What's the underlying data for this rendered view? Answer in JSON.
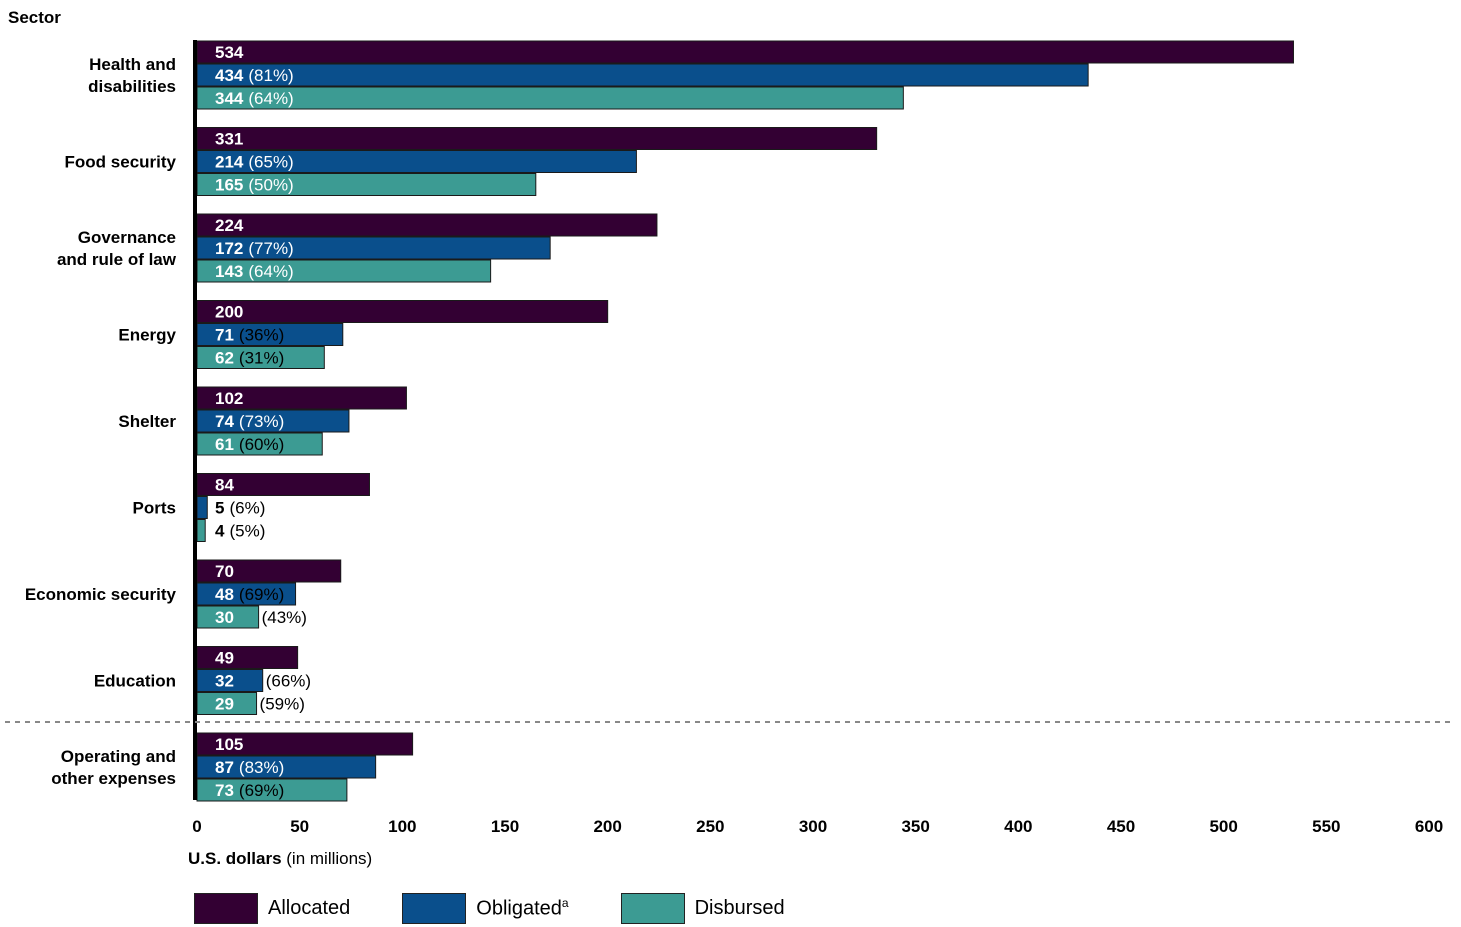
{
  "chart_data": {
    "type": "bar",
    "orientation": "horizontal",
    "ylabel": "Sector",
    "xlabel_bold": "U.S. dollars",
    "xlabel_rest": "(in millions)",
    "xlim": [
      0,
      600
    ],
    "xticks": [
      "0",
      "50",
      "100",
      "150",
      "200",
      "250",
      "300",
      "350",
      "400",
      "450",
      "500",
      "550",
      "600"
    ],
    "categories": [
      [
        "Health and",
        "disabilities"
      ],
      [
        "Food security"
      ],
      [
        "Governance",
        "and rule of law"
      ],
      [
        "Energy"
      ],
      [
        "Shelter"
      ],
      [
        "Ports"
      ],
      [
        "Economic security"
      ],
      [
        "Education"
      ],
      [
        "Operating and",
        "other expenses"
      ]
    ],
    "series": [
      {
        "name": "Allocated",
        "color": "#330033",
        "values": [
          534,
          331,
          224,
          200,
          102,
          84,
          70,
          49,
          105
        ],
        "pct": [
          null,
          null,
          null,
          null,
          null,
          null,
          null,
          null,
          null
        ]
      },
      {
        "name": "Obligated",
        "color": "#0a4f8c",
        "values": [
          434,
          214,
          172,
          71,
          74,
          5,
          48,
          32,
          87
        ],
        "pct": [
          "(81%)",
          "(65%)",
          "(77%)",
          "(36%)",
          "(73%)",
          "(6%)",
          "(69%)",
          "(66%)",
          "(83%)"
        ]
      },
      {
        "name": "Disbursed",
        "color": "#3c9b93",
        "values": [
          344,
          165,
          143,
          62,
          61,
          4,
          30,
          29,
          73
        ],
        "pct": [
          "(64%)",
          "(50%)",
          "(64%)",
          "(31%)",
          "(60%)",
          "(5%)",
          "(43%)",
          "(59%)",
          "(69%)"
        ]
      }
    ],
    "legend": {
      "placement": "bottom",
      "obligated_superscript": "a"
    },
    "separator_before_category": "Operating and other expenses",
    "grid": false
  }
}
